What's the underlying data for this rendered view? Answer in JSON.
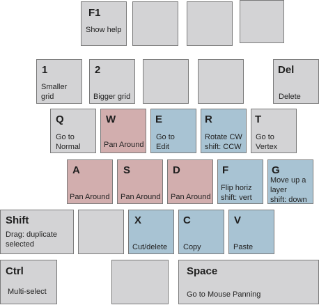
{
  "keys": {
    "f1": {
      "key": "F1",
      "desc": "Show help"
    },
    "k1": {
      "key": "1",
      "desc": "Smaller\ngrid"
    },
    "k2": {
      "key": "2",
      "desc": "Bigger grid"
    },
    "del": {
      "key": "Del",
      "desc": "Delete"
    },
    "q": {
      "key": "Q",
      "desc": "Go to\nNormal"
    },
    "w": {
      "key": "W",
      "desc": "Pan Around"
    },
    "e": {
      "key": "E",
      "desc": "Go to\nEdit"
    },
    "r": {
      "key": "R",
      "desc": "Rotate CW\nshift: CCW"
    },
    "t": {
      "key": "T",
      "desc": "Go to\nVertex"
    },
    "a": {
      "key": "A",
      "desc": "Pan Around"
    },
    "s": {
      "key": "S",
      "desc": "Pan Around"
    },
    "d": {
      "key": "D",
      "desc": "Pan Around"
    },
    "f": {
      "key": "F",
      "desc": "Flip horiz\nshift: vert"
    },
    "g": {
      "key": "G",
      "desc": "Move up a\nlayer\nshift: down"
    },
    "shift": {
      "key": "Shift",
      "desc": "Drag: duplicate\nselected"
    },
    "x": {
      "key": "X",
      "desc": "Cut/delete"
    },
    "c": {
      "key": "C",
      "desc": "Copy"
    },
    "v": {
      "key": "V",
      "desc": "Paste"
    },
    "ctrl": {
      "key": "Ctrl",
      "desc": "Multi-select"
    },
    "space": {
      "key": "Space",
      "desc": "Go to Mouse Panning"
    }
  },
  "colors": {
    "neutral": "#d3d3d5",
    "pan": "#d2aeae",
    "action": "#a8c3d3",
    "border": "#7a7a7a"
  }
}
